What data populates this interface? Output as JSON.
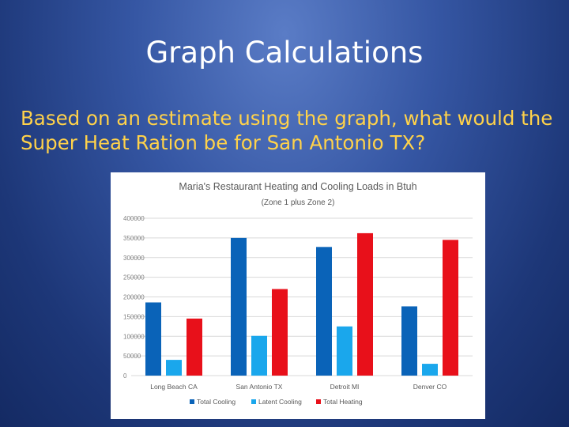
{
  "slide": {
    "title": "Graph Calculations",
    "body": "Based on an estimate using the graph, what would the Super Heat Ration be for San Antonio TX?"
  },
  "chart_data": {
    "type": "bar",
    "title": "Maria's Restaurant Heating and Cooling Loads in Btuh",
    "subtitle": "(Zone 1 plus Zone 2)",
    "categories": [
      "Long Beach CA",
      "San Antonio TX",
      "Detroit MI",
      "Denver CO"
    ],
    "series": [
      {
        "name": "Total Cooling",
        "color": "#0a63b8",
        "values": [
          186000,
          350000,
          327000,
          176000
        ]
      },
      {
        "name": "Latent Cooling",
        "color": "#1aa7ec",
        "values": [
          40000,
          101000,
          125000,
          30000
        ]
      },
      {
        "name": "Total Heating",
        "color": "#e8101a",
        "values": [
          145000,
          220000,
          362000,
          345000
        ]
      }
    ],
    "ylim": [
      0,
      400000
    ],
    "yticks": [
      "0",
      "50000",
      "100000",
      "150000",
      "200000",
      "250000",
      "300000",
      "350000",
      "400000"
    ],
    "grid": true,
    "legend_position": "bottom"
  }
}
